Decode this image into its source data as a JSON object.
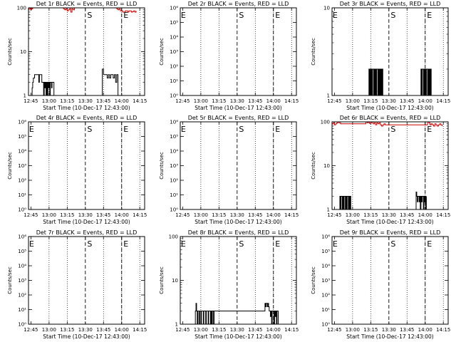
{
  "time_ticks": [
    "12:45",
    "13:00",
    "13:15",
    "13:30",
    "13:45",
    "14:00",
    "14:15"
  ],
  "xlabel": "Start Time (10-Dec-17 12:43:00)",
  "ylabel": "Counts/sec",
  "markers": {
    "S": "S",
    "E": "E"
  },
  "colors": {
    "events": "#000000",
    "lld": "#cc0000",
    "frame": "#000000"
  },
  "chart_data": [
    {
      "type": "line",
      "title": "Det 1r BLACK = Events, RED = LLD",
      "x_unit": "minutes after 12:43:00",
      "y_scale": "log",
      "ylim": [
        1,
        100
      ],
      "ytick_labels": [
        "1",
        "10",
        "100"
      ],
      "dotted_x": [
        17,
        32,
        62,
        77,
        92
      ],
      "dashed_x": [
        47,
        77
      ],
      "series": [
        {
          "color": "#000000",
          "x": [
            2.5,
            3,
            3.5,
            4,
            5,
            6,
            7,
            8,
            8.5,
            9,
            10,
            11,
            12,
            12.5,
            13,
            13.5,
            14,
            14.5,
            15,
            15.5,
            16,
            16.5,
            17,
            17.5,
            18,
            18.5,
            19,
            19.5,
            20,
            20.5,
            21,
            61,
            62,
            63,
            64,
            65,
            66,
            67,
            68,
            69,
            70,
            71,
            72,
            73,
            74
          ],
          "y": [
            1,
            1.5,
            2,
            2.5,
            3,
            3,
            3,
            3,
            2,
            3,
            3,
            2,
            2,
            1,
            2,
            1.5,
            2,
            1,
            2,
            1,
            2,
            1.5,
            2,
            1,
            2,
            2,
            1.5,
            2,
            2,
            2,
            1,
            4,
            3,
            3,
            3,
            2.5,
            3,
            2.5,
            3,
            3,
            2.5,
            3,
            2,
            3,
            1
          ]
        },
        {
          "color": "#cc0000",
          "x": [
            0,
            0.5,
            1,
            1.5,
            2,
            2.5,
            3,
            3.5,
            28,
            29,
            30,
            31,
            32,
            33,
            34,
            35,
            36,
            37,
            38,
            72,
            73,
            74,
            75,
            76,
            77,
            78,
            79,
            80,
            81,
            82,
            83,
            84,
            85,
            86,
            87,
            88,
            89
          ],
          "y": [
            95,
            98,
            100,
            95,
            90,
            100,
            95,
            100,
            100,
            95,
            90,
            95,
            85,
            90,
            95,
            80,
            95,
            90,
            100,
            100,
            95,
            90,
            95,
            85,
            85,
            80,
            80,
            85,
            85,
            80,
            85,
            85,
            80,
            82,
            85,
            80,
            85
          ]
        }
      ],
      "markers": [
        {
          "label": "S",
          "x": 48.5
        },
        {
          "label": "E",
          "x": 78.5
        }
      ]
    },
    {
      "type": "line",
      "title": "Det 2r BLACK = Events, RED = LLD",
      "x_unit": "minutes after 12:43:00",
      "y_scale": "log",
      "ylim": [
        1,
        1000000
      ],
      "ytick_labels": [
        "10⁰",
        "10¹",
        "10²",
        "10³",
        "10⁴",
        "10⁵",
        "10⁶"
      ],
      "dotted_x": [
        17,
        32,
        62,
        77,
        92
      ],
      "dashed_x": [
        47,
        77
      ],
      "series": [],
      "markers": [
        {
          "label": "E",
          "x": 0.5
        },
        {
          "label": "S",
          "x": 48.5
        },
        {
          "label": "E",
          "x": 78.5
        }
      ]
    },
    {
      "type": "line",
      "title": "Det 3r BLACK = Events, RED = LLD",
      "x_unit": "minutes after 12:43:00",
      "y_scale": "log",
      "ylim": [
        1,
        10
      ],
      "ytick_labels": [
        "1",
        "10"
      ],
      "dotted_x": [
        17,
        32,
        62,
        77,
        92
      ],
      "dashed_x": [
        47,
        77
      ],
      "series": [
        {
          "color": "#000000",
          "x": [
            30,
            30.5,
            31,
            31.5,
            32,
            32.5,
            33,
            33.5,
            34,
            34.5,
            35,
            35.5,
            36,
            36.5,
            37,
            37.5,
            38,
            38.5,
            39,
            39.5,
            40,
            40.5,
            41,
            41.5,
            42,
            73,
            73.5,
            74,
            74.5,
            75,
            75.5,
            76,
            76.5,
            77,
            77.5,
            78,
            78.5,
            79,
            79.5,
            80,
            80.5,
            81,
            81.5,
            82
          ],
          "y": [
            1,
            2,
            1,
            2,
            1,
            2,
            1,
            2,
            2,
            1,
            2,
            1,
            2,
            1,
            2,
            2,
            1,
            2,
            1,
            2,
            1,
            2,
            1,
            2,
            1,
            1,
            2,
            1,
            2,
            2,
            1,
            2,
            1,
            2,
            1,
            2,
            2,
            1,
            2,
            1,
            2,
            1,
            2,
            1
          ]
        }
      ],
      "markers": [
        {
          "label": "E",
          "x": 0.5
        },
        {
          "label": "S",
          "x": 48.5
        },
        {
          "label": "E",
          "x": 78.5
        }
      ]
    },
    {
      "type": "line",
      "title": "Det 4r BLACK = Events, RED = LLD",
      "x_unit": "minutes after 12:43:00",
      "y_scale": "log",
      "ylim": [
        1,
        1000000
      ],
      "ytick_labels": [
        "10⁰",
        "10¹",
        "10²",
        "10³",
        "10⁴",
        "10⁵",
        "10⁶"
      ],
      "dotted_x": [
        17,
        32,
        62,
        77,
        92
      ],
      "dashed_x": [
        47,
        77
      ],
      "series": [],
      "markers": [
        {
          "label": "E",
          "x": 0.5
        },
        {
          "label": "S",
          "x": 48.5
        },
        {
          "label": "E",
          "x": 78.5
        }
      ]
    },
    {
      "type": "line",
      "title": "Det 5r BLACK = Events, RED = LLD",
      "x_unit": "minutes after 12:43:00",
      "y_scale": "log",
      "ylim": [
        1,
        1000000
      ],
      "ytick_labels": [
        "10⁰",
        "10¹",
        "10²",
        "10³",
        "10⁴",
        "10⁵",
        "10⁶"
      ],
      "dotted_x": [
        17,
        32,
        62,
        77,
        92
      ],
      "dashed_x": [
        47,
        77
      ],
      "series": [],
      "markers": [
        {
          "label": "E",
          "x": 0.5
        },
        {
          "label": "S",
          "x": 48.5
        },
        {
          "label": "E",
          "x": 78.5
        }
      ]
    },
    {
      "type": "line",
      "title": "Det 6r BLACK = Events, RED = LLD",
      "x_unit": "minutes after 12:43:00",
      "y_scale": "log",
      "ylim": [
        1,
        100
      ],
      "ytick_labels": [
        "1",
        "10",
        "100"
      ],
      "dotted_x": [
        17,
        32,
        62,
        77,
        92
      ],
      "dashed_x": [
        47,
        77
      ],
      "series": [
        {
          "color": "#000000",
          "x": [
            6,
            6.5,
            7,
            7.5,
            8,
            8.5,
            9,
            9.5,
            10,
            10.5,
            11,
            11.5,
            12,
            12.5,
            13,
            13.5,
            14,
            14.5,
            15,
            15.5,
            16,
            69,
            69.5,
            70,
            70.5,
            71,
            71.5,
            72,
            72.5,
            73,
            73.5,
            74,
            74.5,
            75,
            75.5,
            76,
            76.5,
            77,
            77.5,
            78
          ],
          "y": [
            1,
            2,
            1,
            2,
            2,
            1,
            2,
            1,
            2,
            2,
            1,
            2,
            1,
            2,
            2,
            1,
            2,
            1,
            2,
            1,
            1,
            1,
            2.5,
            2,
            1.5,
            2,
            2,
            1.5,
            2,
            1,
            2,
            1.5,
            2,
            2,
            1,
            2,
            1.5,
            2,
            1,
            2
          ]
        },
        {
          "color": "#cc0000",
          "x": [
            0,
            1,
            2,
            3,
            4,
            5,
            6,
            7,
            28,
            29,
            30,
            31,
            32,
            33,
            34,
            35,
            36,
            37,
            38,
            39,
            40,
            41,
            42,
            43,
            44,
            79,
            80,
            81,
            82,
            83,
            84,
            85,
            86,
            87,
            88,
            89,
            90,
            91
          ],
          "y": [
            90,
            95,
            85,
            90,
            95,
            100,
            95,
            90,
            100,
            95,
            98,
            92,
            95,
            100,
            90,
            95,
            85,
            95,
            90,
            95,
            85,
            80,
            85,
            90,
            85,
            100,
            95,
            85,
            90,
            85,
            80,
            90,
            85,
            80,
            85,
            90,
            85,
            80
          ]
        }
      ],
      "markers": [
        {
          "label": "S",
          "x": 48.5
        },
        {
          "label": "E",
          "x": 78.5
        }
      ]
    },
    {
      "type": "line",
      "title": "Det 7r BLACK = Events, RED = LLD",
      "x_unit": "minutes after 12:43:00",
      "y_scale": "log",
      "ylim": [
        1,
        1000000
      ],
      "ytick_labels": [
        "10⁰",
        "10¹",
        "10²",
        "10³",
        "10⁴",
        "10⁵",
        "10⁶"
      ],
      "dotted_x": [
        17,
        32,
        62,
        77,
        92
      ],
      "dashed_x": [
        47,
        77
      ],
      "series": [],
      "markers": [
        {
          "label": "E",
          "x": 0.5
        },
        {
          "label": "S",
          "x": 48.5
        },
        {
          "label": "E",
          "x": 78.5
        }
      ]
    },
    {
      "type": "line",
      "title": "Det 8r BLACK = Events, RED = LLD",
      "x_unit": "minutes after 12:43:00",
      "y_scale": "log",
      "ylim": [
        1,
        100
      ],
      "ytick_labels": [
        "1",
        "10",
        "100"
      ],
      "dotted_x": [
        17,
        32,
        62,
        77,
        92
      ],
      "dashed_x": [
        47,
        77
      ],
      "series": [
        {
          "color": "#000000",
          "x": [
            12,
            12.5,
            13,
            13.5,
            14,
            14.5,
            15,
            15.5,
            16,
            16.5,
            17,
            17.5,
            18,
            18.5,
            19,
            19.5,
            20,
            20.5,
            21,
            21.5,
            22,
            22.5,
            23,
            23.5,
            24,
            24.5,
            25,
            25.5,
            26,
            26.5,
            27,
            27.5,
            28,
            70,
            70.5,
            71,
            71.5,
            72,
            72.5,
            73,
            73.5,
            74,
            74.5,
            75,
            75.5,
            76,
            76.5,
            77,
            77.5,
            78,
            78.5,
            79,
            79.5,
            80,
            80.5,
            81
          ],
          "y": [
            1,
            2,
            3,
            2,
            1,
            2,
            2,
            1,
            2,
            2,
            1,
            2,
            2,
            2,
            1,
            2,
            2,
            2,
            1,
            2,
            2,
            2,
            1,
            2,
            2,
            2,
            1,
            2,
            1,
            2,
            2,
            1,
            2,
            3,
            2.5,
            3,
            3,
            2.5,
            3,
            2.5,
            2,
            2,
            1.5,
            2,
            1,
            2,
            2,
            2,
            1,
            2,
            1.5,
            2,
            1,
            2,
            2,
            1
          ]
        }
      ],
      "markers": [
        {
          "label": "E",
          "x": 0.5
        },
        {
          "label": "S",
          "x": 48.5
        },
        {
          "label": "E",
          "x": 78.5
        }
      ]
    },
    {
      "type": "line",
      "title": "Det 9r BLACK = Events, RED = LLD",
      "x_unit": "minutes after 12:43:00",
      "y_scale": "log",
      "ylim": [
        1,
        1000000
      ],
      "ytick_labels": [
        "10⁰",
        "10¹",
        "10²",
        "10³",
        "10⁴",
        "10⁵",
        "10⁶"
      ],
      "dotted_x": [
        17,
        32,
        62,
        77,
        92
      ],
      "dashed_x": [
        47,
        77
      ],
      "series": [],
      "markers": [
        {
          "label": "E",
          "x": 0.5
        },
        {
          "label": "S",
          "x": 48.5
        },
        {
          "label": "E",
          "x": 78.5
        }
      ]
    }
  ]
}
